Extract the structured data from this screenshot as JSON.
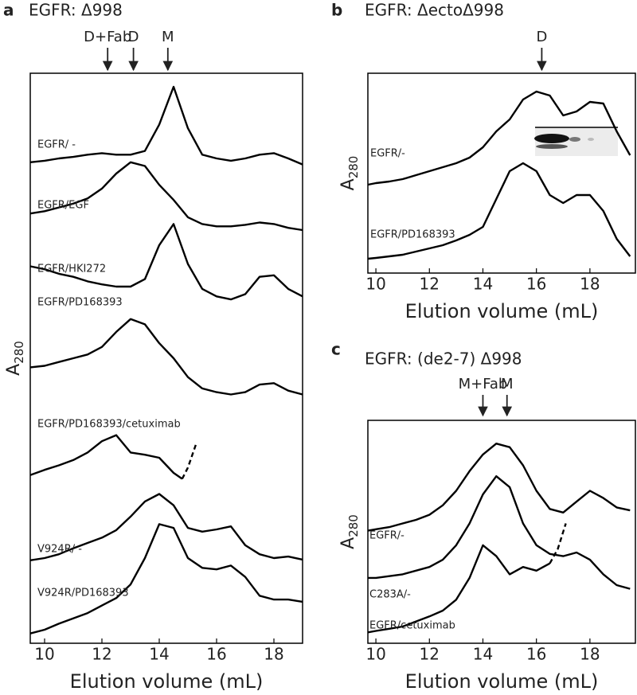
{
  "chart_data": [
    {
      "type": "line",
      "panel": "a",
      "title": "EGFR: Δ998",
      "xlabel": "Elution volume (mL)",
      "ylabel": "A",
      "ylabel_sub": "280",
      "xlim": [
        9.5,
        19
      ],
      "xticks": [
        10,
        12,
        14,
        16,
        18
      ],
      "ylim": [
        0,
        756
      ],
      "arrows": [
        {
          "label": "D+Fab",
          "x": 12.2
        },
        {
          "label": "D",
          "x": 13.1
        },
        {
          "label": "M",
          "x": 14.3
        }
      ],
      "series": [
        {
          "name": "EGFR/ -",
          "color": "#000000",
          "x": [
            9.5,
            10,
            10.5,
            11,
            11.5,
            12,
            12.5,
            13,
            13.5,
            14,
            14.5,
            15,
            15.5,
            16,
            16.5,
            17,
            17.5,
            18,
            18.5,
            19
          ],
          "values": [
            638,
            640,
            643,
            645,
            648,
            650,
            648,
            648,
            653,
            688,
            738,
            683,
            648,
            643,
            640,
            643,
            648,
            650,
            643,
            635
          ]
        },
        {
          "name": "EGFR/EGF",
          "color": "#000000",
          "x": [
            9.5,
            10,
            10.5,
            11,
            11.5,
            12,
            12.5,
            13,
            13.5,
            14,
            14.5,
            15,
            15.5,
            16,
            16.5,
            17,
            17.5,
            18,
            18.5,
            19
          ],
          "values": [
            570,
            573,
            578,
            583,
            590,
            603,
            623,
            638,
            633,
            608,
            588,
            565,
            556,
            553,
            553,
            555,
            558,
            556,
            551,
            548
          ]
        },
        {
          "name": "EGFR/HKI272",
          "color": "#000000",
          "x": [
            9.5,
            10,
            10.5,
            11,
            11.5,
            12,
            12.5,
            13,
            13.5,
            14,
            14.5,
            15,
            15.5,
            16,
            16.5,
            17,
            17.5,
            18,
            18.5,
            19
          ],
          "values": [
            500,
            496,
            490,
            486,
            480,
            476,
            473,
            473,
            483,
            528,
            556,
            503,
            470,
            460,
            456,
            463,
            486,
            488,
            470,
            460
          ]
        },
        {
          "name": "EGFR/PD168393",
          "color": "#000000",
          "x": [
            9.5,
            10,
            10.5,
            11,
            11.5,
            12,
            12.5,
            13,
            13.5,
            14,
            14.5,
            15,
            15.5,
            16,
            16.5,
            17,
            17.5,
            18,
            18.5,
            19
          ],
          "values": [
            366,
            368,
            373,
            378,
            383,
            393,
            413,
            430,
            423,
            398,
            378,
            353,
            338,
            333,
            330,
            333,
            343,
            345,
            335,
            330
          ]
        },
        {
          "name": "EGFR/PD168393/cetuximab",
          "color": "#000000",
          "x": [
            9.5,
            10,
            10.5,
            11,
            11.5,
            12,
            12.5,
            13,
            13.5,
            14,
            14.5,
            14.8
          ],
          "values": [
            223,
            230,
            236,
            243,
            253,
            268,
            276,
            253,
            250,
            246,
            226,
            218
          ]
        },
        {
          "color": "#000000",
          "dashed": true,
          "x": [
            14.8,
            15.0,
            15.3
          ],
          "values": [
            218,
            233,
            266
          ]
        },
        {
          "name": "V924R/ -",
          "color": "#000000",
          "x": [
            9.5,
            10,
            10.5,
            11,
            11.5,
            12,
            12.5,
            13,
            13.5,
            14,
            14.5,
            15,
            15.5,
            16,
            16.5,
            17,
            17.5,
            18,
            18.5,
            19
          ],
          "values": [
            110,
            113,
            118,
            126,
            133,
            140,
            150,
            168,
            188,
            198,
            183,
            153,
            148,
            151,
            155,
            130,
            118,
            113,
            115,
            111
          ]
        },
        {
          "name": "V924R/PD168393",
          "color": "#000000",
          "x": [
            9.5,
            10,
            10.5,
            11,
            11.5,
            12,
            12.5,
            13,
            13.5,
            14,
            14.5,
            15,
            15.5,
            16,
            16.5,
            17,
            17.5,
            18,
            18.5,
            19
          ],
          "values": [
            13,
            18,
            26,
            33,
            40,
            50,
            60,
            78,
            113,
            158,
            153,
            113,
            100,
            98,
            103,
            88,
            63,
            58,
            58,
            55
          ]
        }
      ]
    },
    {
      "type": "line",
      "panel": "b",
      "title": "EGFR: ΔectoΔ998",
      "xlabel": "Elution volume (mL)",
      "ylabel": "A",
      "ylabel_sub": "280",
      "xlim": [
        9.7,
        19.7
      ],
      "xticks": [
        10,
        12,
        14,
        16,
        18
      ],
      "ylim": [
        -13,
        238
      ],
      "arrows": [
        {
          "label": "D",
          "x": 16.2
        }
      ],
      "series": [
        {
          "name": "EGFR/-",
          "color": "#000000",
          "x": [
            9.7,
            10,
            10.5,
            11,
            11.5,
            12,
            12.5,
            13,
            13.5,
            14,
            14.5,
            15,
            15.5,
            16,
            16.5,
            17,
            17.5,
            18,
            18.5,
            19,
            19.5
          ],
          "values": [
            98,
            100,
            102,
            105,
            110,
            115,
            120,
            125,
            132,
            145,
            165,
            180,
            205,
            215,
            210,
            185,
            190,
            202,
            200,
            165,
            135
          ]
        },
        {
          "name": "EGFR/PD168393",
          "color": "#000000",
          "x": [
            9.7,
            10,
            10.5,
            11,
            11.5,
            12,
            12.5,
            13,
            13.5,
            14,
            14.5,
            15,
            15.5,
            16,
            16.5,
            17,
            17.5,
            18,
            18.5,
            19,
            19.5
          ],
          "values": [
            5,
            6,
            8,
            10,
            14,
            18,
            22,
            28,
            35,
            45,
            80,
            115,
            125,
            115,
            85,
            75,
            85,
            85,
            65,
            30,
            8
          ]
        }
      ]
    },
    {
      "type": "line",
      "panel": "c",
      "title": "EGFR: (de2-7) Δ998",
      "xlabel": "Elution volume (mL)",
      "ylabel": "A",
      "ylabel_sub": "280",
      "xlim": [
        9.7,
        19.7
      ],
      "xticks": [
        10,
        12,
        14,
        16,
        18
      ],
      "ylim": [
        0,
        307
      ],
      "arrows": [
        {
          "label": "M+Fab",
          "x": 14.0
        },
        {
          "label": "M",
          "x": 14.9
        }
      ],
      "series": [
        {
          "name": "EGFR/-",
          "color": "#000000",
          "x": [
            9.7,
            10,
            10.5,
            11,
            11.5,
            12,
            12.5,
            13,
            13.5,
            14,
            14.5,
            15,
            15.5,
            16,
            16.5,
            17,
            17.5,
            18,
            18.5,
            19,
            19.5
          ],
          "values": [
            155,
            157,
            160,
            165,
            170,
            177,
            190,
            210,
            237,
            260,
            275,
            270,
            245,
            210,
            185,
            180,
            195,
            210,
            200,
            187,
            183
          ]
        },
        {
          "name": "C283A/-",
          "color": "#000000",
          "x": [
            9.7,
            10,
            11,
            12,
            12.5,
            13,
            13.5,
            14,
            14.5,
            15,
            15.5,
            16,
            16.5,
            17,
            17.5,
            18,
            18.5,
            19,
            19.5
          ],
          "values": [
            90,
            90,
            95,
            105,
            115,
            135,
            165,
            205,
            230,
            215,
            165,
            135,
            123,
            120,
            125,
            115,
            95,
            80,
            75
          ]
        },
        {
          "name": "EGFR/cetuximab",
          "color": "#000000",
          "x": [
            9.7,
            10,
            10.5,
            11,
            11.5,
            12,
            12.5,
            13,
            13.5,
            14,
            14.5,
            15,
            15.5,
            16,
            16.5
          ],
          "values": [
            15,
            17,
            20,
            23,
            30,
            37,
            45,
            60,
            90,
            135,
            120,
            95,
            105,
            100,
            110
          ]
        },
        {
          "color": "#000000",
          "dashed": true,
          "x": [
            16.5,
            16.8,
            17.1
          ],
          "values": [
            110,
            130,
            165
          ]
        }
      ]
    }
  ]
}
